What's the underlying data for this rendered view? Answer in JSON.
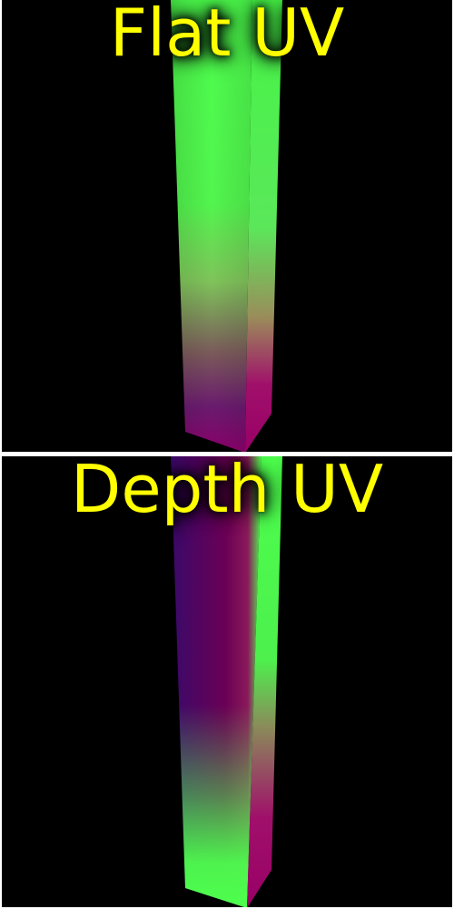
{
  "panels": [
    {
      "title": "Flat UV"
    },
    {
      "title": "Depth UV"
    }
  ],
  "colors": {
    "title": "#ffff00",
    "background": "#000000",
    "divider": "#ffffff",
    "uv_green": "#4dff4d",
    "uv_magenta": "#990066",
    "uv_purple": "#330066"
  }
}
